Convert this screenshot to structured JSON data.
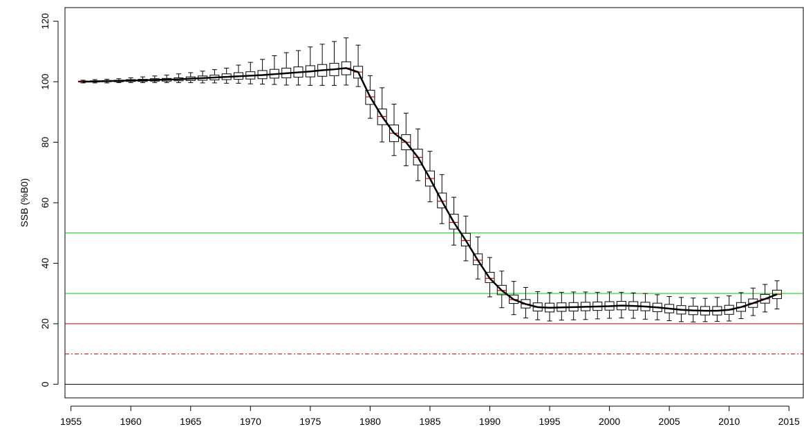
{
  "chart_data": {
    "type": "box",
    "title": "",
    "xlabel": "",
    "ylabel": "SSB (%B0)",
    "xlim": [
      1954.5,
      2016.2
    ],
    "ylim": [
      -4.5,
      124.5
    ],
    "x_ticks": [
      1955,
      1960,
      1965,
      1970,
      1975,
      1980,
      1985,
      1990,
      1995,
      2000,
      2005,
      2010,
      2015
    ],
    "y_ticks": [
      0,
      20,
      40,
      60,
      80,
      100,
      120
    ],
    "grid": false,
    "legend": "none",
    "reference_lines": [
      {
        "y": 50,
        "color": "#00cc00",
        "style": "solid"
      },
      {
        "y": 30,
        "color": "#00cc00",
        "style": "solid"
      },
      {
        "y": 20,
        "color": "#cc0000",
        "style": "solid"
      },
      {
        "y": 10,
        "color": "#cc0000",
        "style": "dashdot"
      },
      {
        "y": 0,
        "color": "#000000",
        "style": "solid"
      }
    ],
    "median_color": "#cc0000",
    "series": [
      {
        "x": [
          1956,
          1957,
          1958,
          1959,
          1960,
          1961,
          1962,
          1963,
          1964,
          1965,
          1966,
          1967,
          1968,
          1969,
          1970,
          1971,
          1972,
          1973,
          1974,
          1975,
          1976,
          1977,
          1978,
          1979,
          1980,
          1981,
          1982,
          1983,
          1984,
          1985,
          1986,
          1987,
          1988,
          1989,
          1990,
          1991,
          1992,
          1993,
          1994,
          1995,
          1996,
          1997,
          1998,
          1999,
          2000,
          2001,
          2002,
          2003,
          2004,
          2005,
          2006,
          2007,
          2008,
          2009,
          2010,
          2011,
          2012,
          2013,
          2014
        ],
        "median": [
          100,
          100.1,
          100.2,
          100.3,
          100.4,
          100.5,
          100.6,
          100.7,
          100.8,
          101,
          101.2,
          101.4,
          101.6,
          101.8,
          102,
          102.2,
          102.5,
          102.8,
          103.1,
          103.4,
          103.8,
          104.1,
          104.5,
          103.2,
          95,
          88.5,
          83,
          80,
          75,
          68,
          60.5,
          53.5,
          47.5,
          41,
          35,
          31,
          28,
          26.5,
          25.5,
          25.3,
          25.4,
          25.5,
          25.6,
          25.7,
          25.8,
          26,
          25.9,
          25.7,
          25.4,
          25,
          24.6,
          24.4,
          24.3,
          24.3,
          24.6,
          25.5,
          26.8,
          28.2,
          29.7
        ],
        "q1": [
          99.9,
          99.9,
          100,
          100,
          100.1,
          100.1,
          100.2,
          100.2,
          100.3,
          100.4,
          100.5,
          100.6,
          100.7,
          100.8,
          100.9,
          101,
          101.2,
          101.3,
          101.5,
          101.6,
          101.8,
          102,
          102.3,
          101.2,
          92.5,
          85.8,
          80.2,
          77.5,
          72.5,
          65.5,
          58.3,
          51.3,
          45.7,
          39.5,
          33.6,
          29.6,
          26.7,
          25.2,
          24.2,
          23.9,
          24.1,
          24.2,
          24.3,
          24.4,
          24.5,
          24.6,
          24.5,
          24.3,
          24,
          23.6,
          23.2,
          23,
          22.9,
          22.9,
          23.1,
          24.1,
          25.4,
          26.8,
          28.3
        ],
        "q3": [
          100.2,
          100.3,
          100.4,
          100.5,
          100.7,
          100.8,
          101,
          101.1,
          101.3,
          101.6,
          101.9,
          102.2,
          102.6,
          103,
          103.3,
          103.7,
          104.1,
          104.5,
          104.9,
          105.3,
          105.7,
          106.1,
          106.6,
          105.1,
          97.2,
          91,
          85.7,
          82.5,
          77.7,
          70.5,
          63.2,
          56.2,
          49.9,
          43.1,
          37,
          32.7,
          29.5,
          28,
          26.9,
          26.8,
          26.9,
          27,
          27.1,
          27.2,
          27.3,
          27.4,
          27.3,
          27.1,
          26.8,
          26.4,
          26,
          25.8,
          25.7,
          25.7,
          26.1,
          27,
          28.2,
          29.7,
          31.1
        ],
        "whisker_low": [
          99.6,
          99.6,
          99.6,
          99.7,
          99.7,
          99.7,
          99.7,
          99.7,
          99.7,
          99.7,
          99.6,
          99.6,
          99.5,
          99.5,
          99.3,
          99.2,
          99.1,
          98.9,
          98.9,
          98.8,
          98.8,
          98.8,
          98.9,
          98.4,
          87.9,
          80.1,
          75.6,
          72.2,
          67.3,
          60.3,
          53.1,
          46,
          40.8,
          34.8,
          28.9,
          25.3,
          23,
          21.9,
          21.3,
          20.9,
          21.2,
          21.3,
          21.4,
          21.6,
          21.8,
          21.9,
          21.8,
          21.5,
          21.3,
          21,
          20.7,
          20.6,
          20.7,
          20.8,
          20.9,
          21.7,
          22.7,
          23.9,
          24.9
        ],
        "whisker_high": [
          100.5,
          100.7,
          100.8,
          101,
          101.3,
          101.6,
          101.9,
          102.2,
          102.6,
          103,
          103.5,
          104,
          104.5,
          105.5,
          106.4,
          107.4,
          108.6,
          109.6,
          110.3,
          111.5,
          112.4,
          113.3,
          114.5,
          112.1,
          102,
          98,
          92.6,
          89.6,
          84.4,
          77,
          69.3,
          61.8,
          55.6,
          48.7,
          41.9,
          37.4,
          34,
          32,
          30.6,
          30.3,
          30.4,
          30.5,
          30.5,
          30.4,
          30.5,
          30.4,
          30.2,
          30,
          29.6,
          29,
          28.7,
          28.5,
          28.4,
          28.7,
          29.2,
          30.3,
          31.8,
          33,
          34.2
        ]
      }
    ]
  }
}
